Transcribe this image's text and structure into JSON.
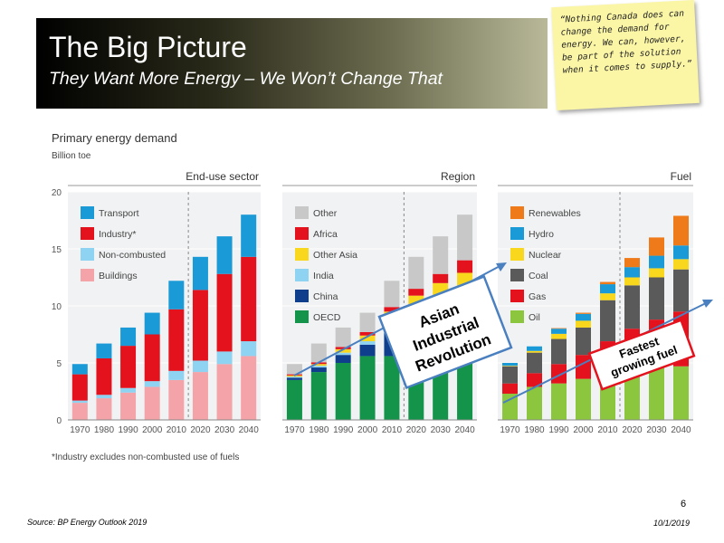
{
  "header": {
    "title": "The Big Picture",
    "subtitle": "They Want More Energy – We Won’t Change That"
  },
  "sticky_note": {
    "text": "“Nothing Canada does can change the demand for energy. We can, however, be part of the solution when it comes to supply.”"
  },
  "footer": {
    "source": "Source: BP Energy Outlook 2019",
    "page": "6",
    "date": "10/1/2019"
  },
  "chart_data": {
    "type": "bar",
    "stacked": true,
    "title": "Primary energy demand",
    "unit": "Billion toe",
    "ylim": [
      0,
      20
    ],
    "yticks": [
      0,
      5,
      10,
      15,
      20
    ],
    "categories": [
      "1970",
      "1980",
      "1990",
      "2000",
      "2010",
      "2020",
      "2030",
      "2040"
    ],
    "projection_start": "2020",
    "footnote": "*Industry excludes non-combusted use of fuels",
    "panels": [
      {
        "name": "End-use sector",
        "legend": [
          "Transport",
          "Industry*",
          "Non-combusted",
          "Buildings"
        ],
        "series": [
          {
            "name": "Buildings",
            "color": "#f4a3a8",
            "values": [
              1.5,
              1.9,
              2.4,
              2.9,
              3.5,
              4.2,
              4.9,
              5.6
            ]
          },
          {
            "name": "Non-combusted",
            "color": "#8fd3f2",
            "values": [
              0.2,
              0.3,
              0.4,
              0.5,
              0.8,
              1.0,
              1.1,
              1.3
            ]
          },
          {
            "name": "Industry*",
            "color": "#e3121d",
            "values": [
              2.3,
              3.2,
              3.7,
              4.1,
              5.4,
              6.2,
              6.8,
              7.4
            ]
          },
          {
            "name": "Transport",
            "color": "#1a9ad6",
            "values": [
              0.9,
              1.3,
              1.6,
              1.9,
              2.5,
              2.9,
              3.3,
              3.7
            ]
          }
        ]
      },
      {
        "name": "Region",
        "legend": [
          "Other",
          "Africa",
          "Other Asia",
          "India",
          "China",
          "OECD"
        ],
        "series": [
          {
            "name": "OECD",
            "color": "#13944a",
            "values": [
              3.5,
              4.2,
              5.0,
              5.6,
              5.6,
              5.6,
              5.5,
              5.4
            ]
          },
          {
            "name": "China",
            "color": "#0f3e8c",
            "values": [
              0.2,
              0.4,
              0.7,
              1.0,
              2.6,
              3.3,
              3.6,
              3.7
            ]
          },
          {
            "name": "India",
            "color": "#8fd3f2",
            "values": [
              0.1,
              0.15,
              0.2,
              0.3,
              0.5,
              0.9,
              1.4,
              2.0
            ]
          },
          {
            "name": "Other Asia",
            "color": "#f9d71c",
            "values": [
              0.1,
              0.15,
              0.3,
              0.5,
              0.8,
              1.1,
              1.5,
              1.8
            ]
          },
          {
            "name": "Africa",
            "color": "#e3121d",
            "values": [
              0.1,
              0.15,
              0.2,
              0.3,
              0.4,
              0.6,
              0.8,
              1.1
            ]
          },
          {
            "name": "Other",
            "color": "#c8c8c8",
            "values": [
              0.9,
              1.65,
              1.7,
              1.7,
              2.3,
              2.8,
              3.3,
              4.0
            ]
          }
        ]
      },
      {
        "name": "Fuel",
        "legend": [
          "Renewables",
          "Hydro",
          "Nuclear",
          "Coal",
          "Gas",
          "Oil"
        ],
        "series": [
          {
            "name": "Oil",
            "color": "#8cc63e",
            "values": [
              2.3,
              2.9,
              3.2,
              3.6,
              4.1,
              4.5,
              4.7,
              4.7
            ]
          },
          {
            "name": "Gas",
            "color": "#e3121d",
            "values": [
              0.9,
              1.2,
              1.7,
              2.1,
              2.8,
              3.5,
              4.1,
              4.8
            ]
          },
          {
            "name": "Coal",
            "color": "#5a5a5a",
            "values": [
              1.5,
              1.8,
              2.2,
              2.4,
              3.6,
              3.8,
              3.7,
              3.7
            ]
          },
          {
            "name": "Nuclear",
            "color": "#f9d71c",
            "values": [
              0.05,
              0.15,
              0.45,
              0.6,
              0.6,
              0.7,
              0.8,
              0.9
            ]
          },
          {
            "name": "Hydro",
            "color": "#1a9ad6",
            "values": [
              0.25,
              0.4,
              0.45,
              0.6,
              0.8,
              0.9,
              1.1,
              1.2
            ]
          },
          {
            "name": "Renewables",
            "color": "#ef7a1a",
            "values": [
              0.0,
              0.0,
              0.05,
              0.1,
              0.2,
              0.8,
              1.6,
              2.6
            ]
          }
        ]
      }
    ],
    "annotations": [
      {
        "text": "Asian Industrial Revolution",
        "panel": "Region"
      },
      {
        "text": "Fastest growing fuel",
        "panel": "Fuel"
      }
    ]
  }
}
